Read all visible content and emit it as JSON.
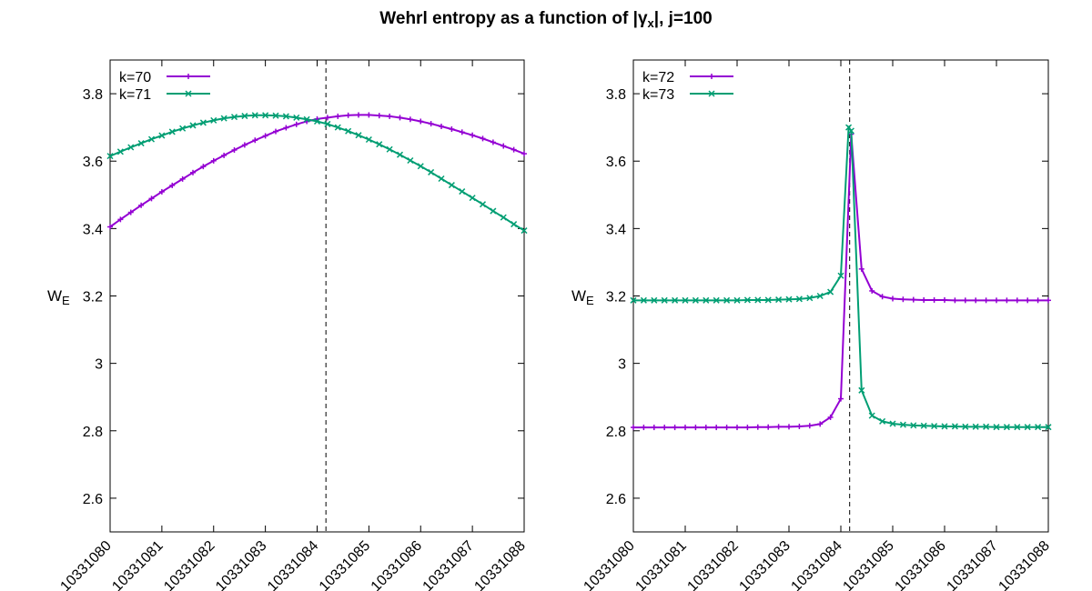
{
  "title": {
    "main": "Wehrl entropy as a function of |",
    "symbol": "γ",
    "subscript": "x",
    "tail": "|,  j=100"
  },
  "colors": {
    "series_a": "#9400d3",
    "series_b": "#009e73",
    "frame": "#000000",
    "marker_line": "#000000"
  },
  "chart_data": [
    {
      "type": "line",
      "ylabel_main": "W",
      "ylabel_sub": "E",
      "xlim": [
        10331080,
        10331088
      ],
      "ylim": [
        2.5,
        3.9
      ],
      "x_ticks": [
        "10331080",
        "10331081",
        "10331082",
        "10331083",
        "10331084",
        "10331085",
        "10331086",
        "10331087",
        "10331088"
      ],
      "y_ticks": [
        "2.6",
        "2.8",
        "3",
        "3.2",
        "3.4",
        "3.6",
        "3.8"
      ],
      "y_tick_values": [
        2.6,
        2.8,
        3.0,
        3.2,
        3.4,
        3.6,
        3.8
      ],
      "vline_x": 10331084.17,
      "legend_position": "top-left",
      "series": [
        {
          "name": "k=70",
          "marker": "plus",
          "x": [
            10331080.0,
            10331080.2,
            10331080.4,
            10331080.6,
            10331080.8,
            10331081.0,
            10331081.2,
            10331081.4,
            10331081.6,
            10331081.8,
            10331082.0,
            10331082.2,
            10331082.4,
            10331082.6,
            10331082.8,
            10331083.0,
            10331083.2,
            10331083.4,
            10331083.6,
            10331083.8,
            10331084.0,
            10331084.2,
            10331084.4,
            10331084.6,
            10331084.8,
            10331085.0,
            10331085.2,
            10331085.4,
            10331085.6,
            10331085.8,
            10331086.0,
            10331086.2,
            10331086.4,
            10331086.6,
            10331086.8,
            10331087.0,
            10331087.2,
            10331087.4,
            10331087.6,
            10331087.8,
            10331088.0
          ],
          "y": [
            3.405,
            3.427,
            3.448,
            3.469,
            3.489,
            3.509,
            3.528,
            3.547,
            3.566,
            3.584,
            3.601,
            3.617,
            3.633,
            3.648,
            3.662,
            3.675,
            3.688,
            3.699,
            3.709,
            3.718,
            3.725,
            3.729,
            3.733,
            3.736,
            3.737,
            3.737,
            3.735,
            3.733,
            3.729,
            3.724,
            3.718,
            3.711,
            3.703,
            3.695,
            3.686,
            3.677,
            3.667,
            3.656,
            3.645,
            3.634,
            3.622
          ]
        },
        {
          "name": "k=71",
          "marker": "cross",
          "x": [
            10331080.0,
            10331080.2,
            10331080.4,
            10331080.6,
            10331080.8,
            10331081.0,
            10331081.2,
            10331081.4,
            10331081.6,
            10331081.8,
            10331082.0,
            10331082.2,
            10331082.4,
            10331082.6,
            10331082.8,
            10331083.0,
            10331083.2,
            10331083.4,
            10331083.6,
            10331083.8,
            10331084.0,
            10331084.2,
            10331084.4,
            10331084.6,
            10331084.8,
            10331085.0,
            10331085.2,
            10331085.4,
            10331085.6,
            10331085.8,
            10331086.0,
            10331086.2,
            10331086.4,
            10331086.6,
            10331086.8,
            10331087.0,
            10331087.2,
            10331087.4,
            10331087.6,
            10331087.8,
            10331088.0
          ],
          "y": [
            3.615,
            3.628,
            3.641,
            3.653,
            3.665,
            3.676,
            3.687,
            3.697,
            3.706,
            3.714,
            3.721,
            3.727,
            3.731,
            3.734,
            3.736,
            3.736,
            3.735,
            3.733,
            3.729,
            3.724,
            3.718,
            3.71,
            3.7,
            3.689,
            3.677,
            3.664,
            3.65,
            3.635,
            3.619,
            3.602,
            3.585,
            3.567,
            3.548,
            3.529,
            3.51,
            3.491,
            3.472,
            3.452,
            3.433,
            3.413,
            3.394
          ]
        }
      ]
    },
    {
      "type": "line",
      "ylabel_main": "W",
      "ylabel_sub": "E",
      "xlim": [
        10331080,
        10331088
      ],
      "ylim": [
        2.5,
        3.9
      ],
      "x_ticks": [
        "10331080",
        "10331081",
        "10331082",
        "10331083",
        "10331084",
        "10331085",
        "10331086",
        "10331087",
        "10331088"
      ],
      "y_ticks": [
        "2.6",
        "2.8",
        "3",
        "3.2",
        "3.4",
        "3.6",
        "3.8"
      ],
      "y_tick_values": [
        2.6,
        2.8,
        3.0,
        3.2,
        3.4,
        3.6,
        3.8
      ],
      "vline_x": 10331084.17,
      "legend_position": "top-left",
      "series": [
        {
          "name": "k=72",
          "marker": "plus",
          "x": [
            10331080.0,
            10331080.2,
            10331080.4,
            10331080.6,
            10331080.8,
            10331081.0,
            10331081.2,
            10331081.4,
            10331081.6,
            10331081.8,
            10331082.0,
            10331082.2,
            10331082.4,
            10331082.6,
            10331082.8,
            10331083.0,
            10331083.2,
            10331083.4,
            10331083.6,
            10331083.8,
            10331084.0,
            10331084.2,
            10331084.4,
            10331084.6,
            10331084.8,
            10331085.0,
            10331085.2,
            10331085.4,
            10331085.6,
            10331085.8,
            10331086.0,
            10331086.2,
            10331086.4,
            10331086.6,
            10331086.8,
            10331087.0,
            10331087.2,
            10331087.4,
            10331087.6,
            10331087.8,
            10331088.0
          ],
          "y": [
            2.81,
            2.81,
            2.81,
            2.81,
            2.81,
            2.81,
            2.81,
            2.81,
            2.81,
            2.81,
            2.81,
            2.81,
            2.811,
            2.811,
            2.812,
            2.812,
            2.813,
            2.815,
            2.82,
            2.84,
            2.895,
            3.68,
            3.28,
            3.215,
            3.198,
            3.192,
            3.19,
            3.189,
            3.188,
            3.188,
            3.188,
            3.187,
            3.187,
            3.187,
            3.187,
            3.187,
            3.187,
            3.187,
            3.187,
            3.187,
            3.187
          ]
        },
        {
          "name": "k=73",
          "marker": "cross",
          "x": [
            10331080.0,
            10331080.2,
            10331080.4,
            10331080.6,
            10331080.8,
            10331081.0,
            10331081.2,
            10331081.4,
            10331081.6,
            10331081.8,
            10331082.0,
            10331082.2,
            10331082.4,
            10331082.6,
            10331082.8,
            10331083.0,
            10331083.2,
            10331083.4,
            10331083.6,
            10331083.8,
            10331084.0,
            10331084.15,
            10331084.2,
            10331084.4,
            10331084.6,
            10331084.8,
            10331085.0,
            10331085.2,
            10331085.4,
            10331085.6,
            10331085.8,
            10331086.0,
            10331086.2,
            10331086.4,
            10331086.6,
            10331086.8,
            10331087.0,
            10331087.2,
            10331087.4,
            10331087.6,
            10331087.8,
            10331088.0
          ],
          "y": [
            3.187,
            3.187,
            3.187,
            3.187,
            3.187,
            3.187,
            3.187,
            3.187,
            3.187,
            3.187,
            3.187,
            3.188,
            3.188,
            3.188,
            3.189,
            3.19,
            3.191,
            3.194,
            3.2,
            3.212,
            3.26,
            3.7,
            3.69,
            2.92,
            2.845,
            2.828,
            2.821,
            2.818,
            2.816,
            2.815,
            2.814,
            2.813,
            2.813,
            2.812,
            2.812,
            2.812,
            2.811,
            2.811,
            2.811,
            2.811,
            2.811,
            2.811
          ]
        }
      ]
    }
  ]
}
